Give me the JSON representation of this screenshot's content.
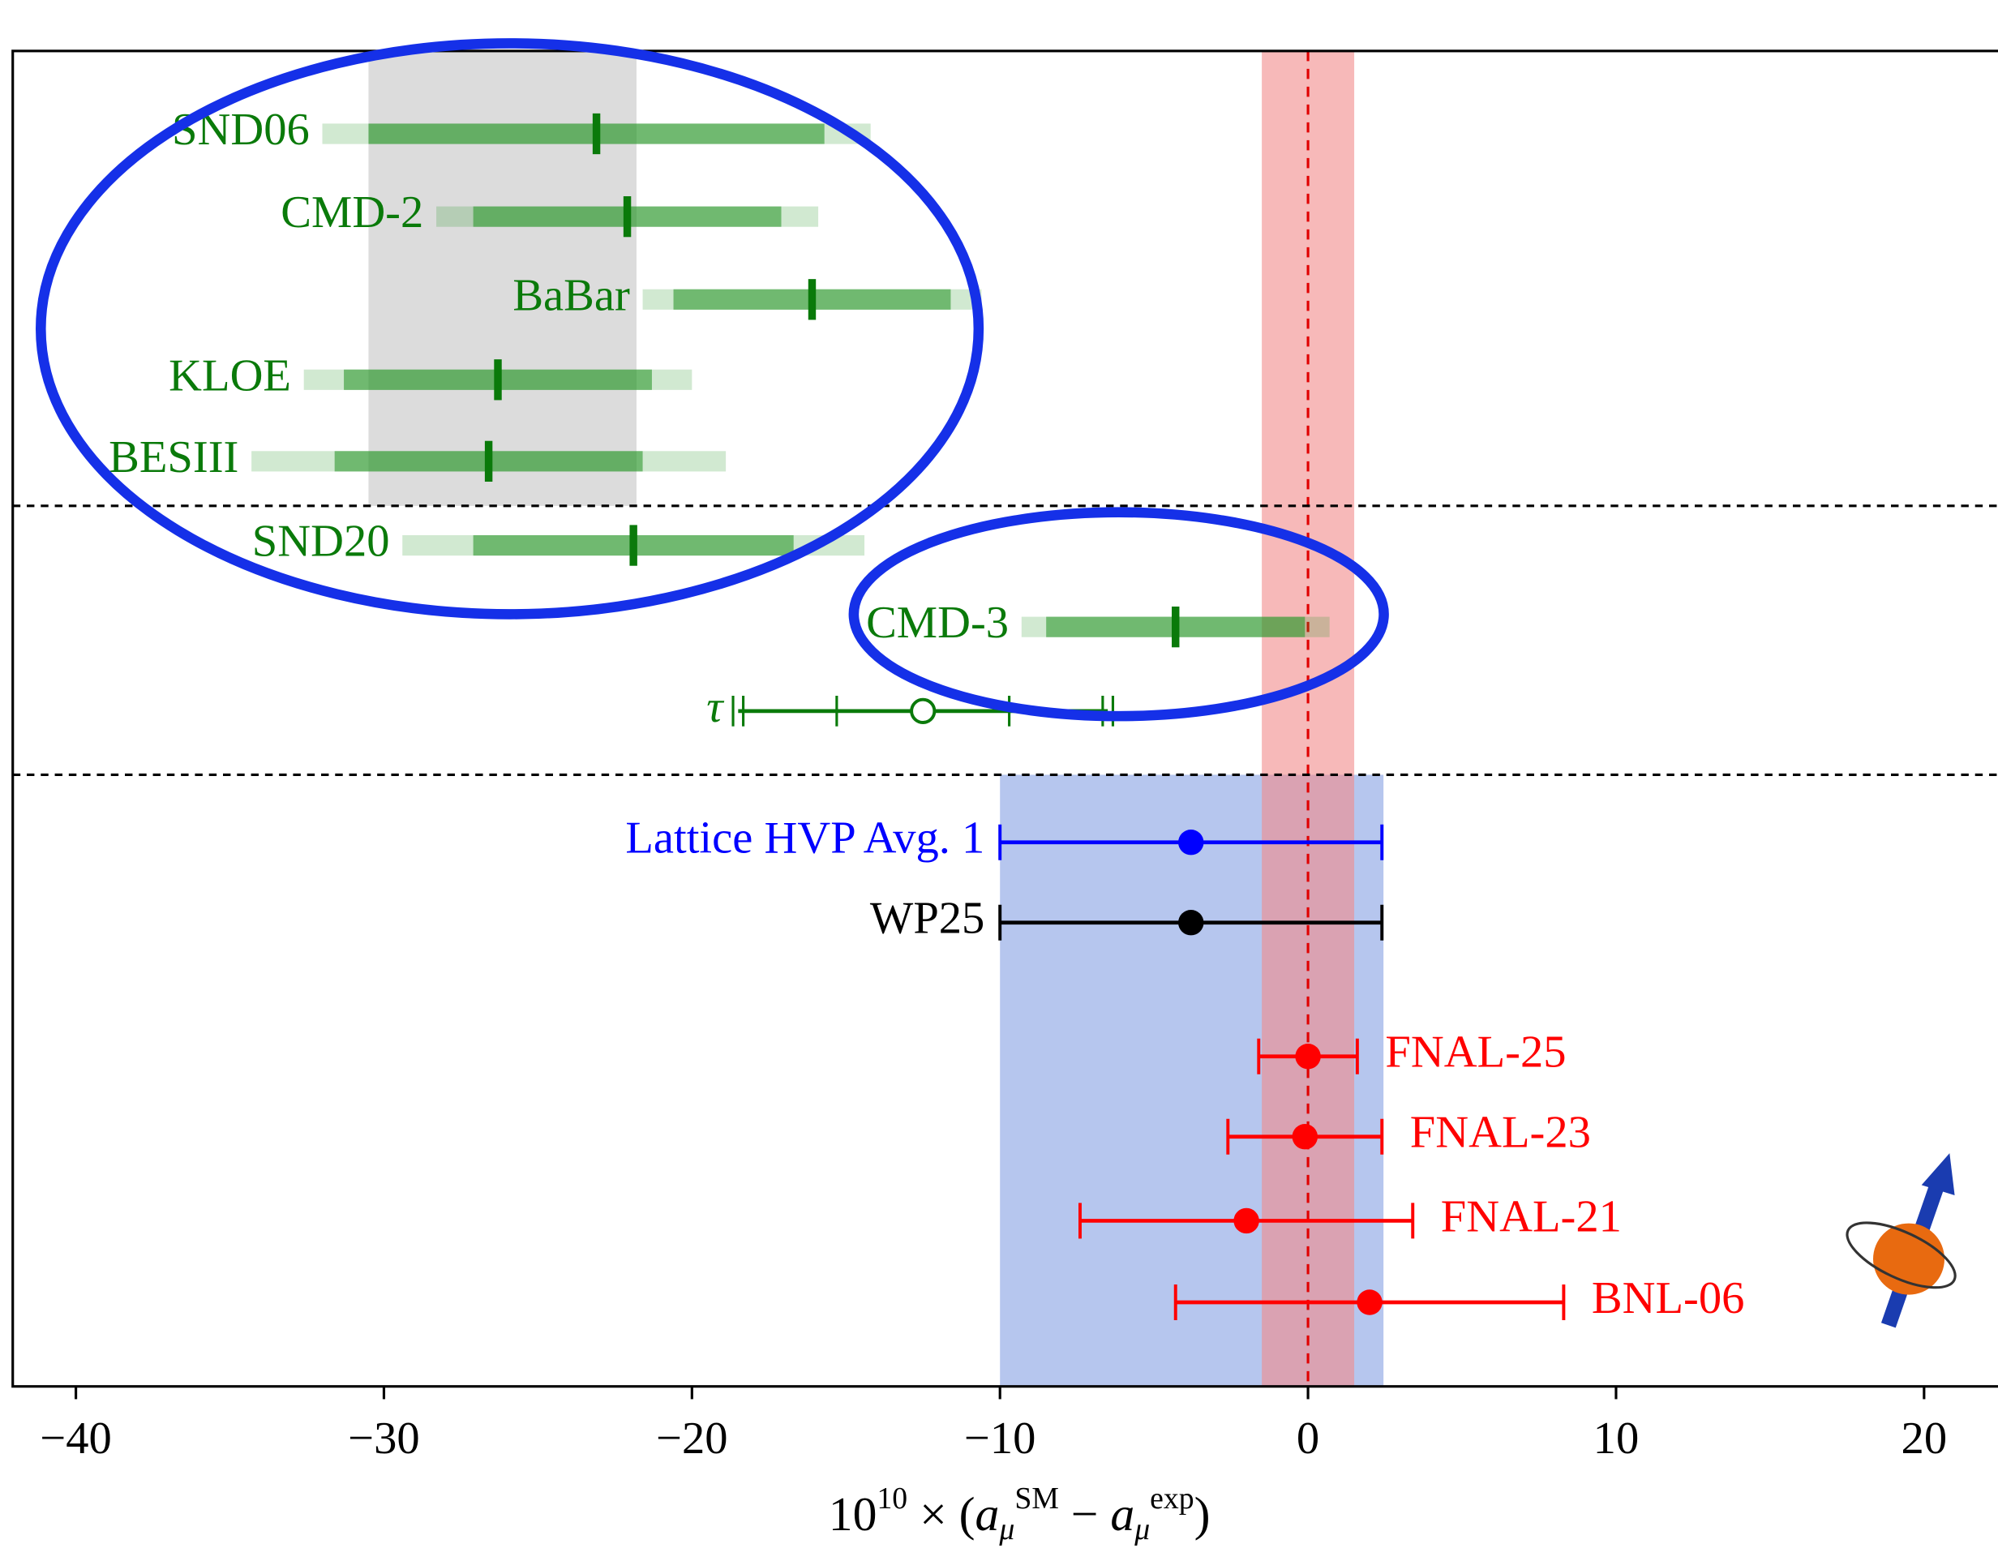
{
  "chart_data": {
    "type": "forest",
    "xlim": [
      -42.05,
      22.4
    ],
    "xticks": [
      {
        "value": -40,
        "label": "−40"
      },
      {
        "value": -30,
        "label": "−30"
      },
      {
        "value": -20,
        "label": "−20"
      },
      {
        "value": -10,
        "label": "−10"
      },
      0,
      10,
      20
    ],
    "xlabel": [
      "10",
      "10",
      " × (",
      "a",
      "μ",
      "SM",
      " − ",
      "a",
      "μ",
      "exp",
      ")"
    ],
    "reference_line": 0,
    "bands": [
      {
        "lo": -30.5,
        "hi": -21.8,
        "color": "#dcdcdc"
      },
      {
        "lo": -10.0,
        "hi": 2.45,
        "color": "#aec0ec"
      },
      {
        "lo": -1.5,
        "hi": 1.5,
        "color": "#f28b8b"
      }
    ],
    "series": [
      {
        "name": "SND06",
        "color": "#0a7a0a",
        "marker": "band",
        "value": -23.1,
        "err_inner": 7.4,
        "err_outer": 8.9
      },
      {
        "name": "CMD-2",
        "color": "#0a7a0a",
        "marker": "band",
        "value": -22.1,
        "err_inner": 5.0,
        "err_outer": 6.2
      },
      {
        "name": "BaBar",
        "color": "#0a7a0a",
        "marker": "band",
        "value": -16.1,
        "err_inner": 4.5,
        "err_outer": 5.5
      },
      {
        "name": "KLOE",
        "color": "#0a7a0a",
        "marker": "band",
        "value": -26.3,
        "err_inner": 5.0,
        "err_outer": 6.3
      },
      {
        "name": "BESIII",
        "color": "#0a7a0a",
        "marker": "band",
        "value": -26.6,
        "err_inner": 5.0,
        "err_outer": 7.7
      },
      {
        "name": "SND20",
        "color": "#0a7a0a",
        "marker": "band",
        "value": -21.9,
        "err_inner": 5.2,
        "err_outer": 7.5
      },
      {
        "name": "CMD-3",
        "color": "#0a7a0a",
        "marker": "band",
        "value": -4.3,
        "err_inner": 4.2,
        "err_outer": 5.0
      },
      {
        "name": "τ",
        "color": "#0a7a0a",
        "marker": "open",
        "value": -12.5,
        "err_inner": 2.8,
        "err_outer": 6.0
      },
      {
        "name": "Lattice HVP Avg. 1",
        "color": "#0000ff",
        "marker": "filled",
        "value": -3.8,
        "err": 6.2
      },
      {
        "name": "WP25",
        "color": "#000000",
        "marker": "filled",
        "value": -3.8,
        "err": 6.2
      },
      {
        "name": "FNAL-25",
        "color": "#ff0000",
        "marker": "filled",
        "value": 0.0,
        "err": 1.6
      },
      {
        "name": "FNAL-23",
        "color": "#ff0000",
        "marker": "filled",
        "value": -0.1,
        "err": 2.5
      },
      {
        "name": "FNAL-21",
        "color": "#ff0000",
        "marker": "filled",
        "value": -2.0,
        "err": 5.4
      },
      {
        "name": "BNL-06",
        "color": "#ff0000",
        "marker": "filled",
        "value": 2.0,
        "err": 6.3
      }
    ]
  }
}
